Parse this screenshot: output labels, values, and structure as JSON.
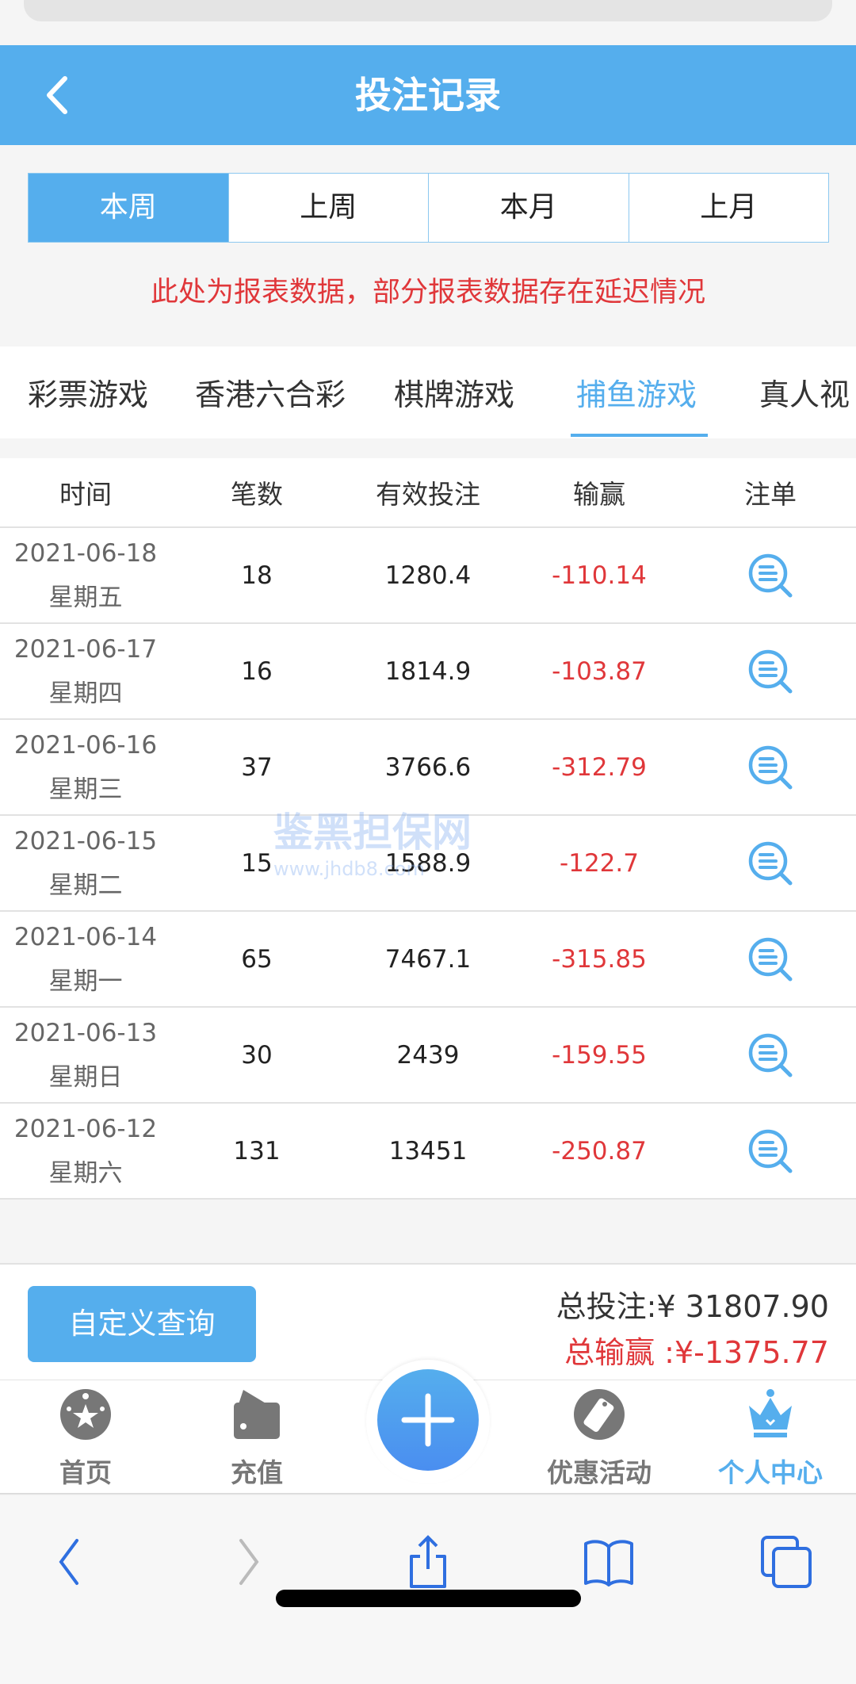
{
  "header": {
    "title": "投注记录",
    "back_icon": "chevron-left-icon"
  },
  "periods": [
    "本周",
    "上周",
    "本月",
    "上月"
  ],
  "active_period": 0,
  "notice": "此处为报表数据，部分报表数据存在延迟情况",
  "game_tabs": [
    "彩票游戏",
    "香港六合彩",
    "棋牌游戏",
    "捕鱼游戏",
    "真人视"
  ],
  "active_game_tab": 3,
  "table": {
    "columns": [
      "时间",
      "笔数",
      "有效投注",
      "输赢",
      "注单"
    ],
    "rows": [
      {
        "date": "2021-06-18",
        "weekday": "星期五",
        "count": "18",
        "valid_bet": "1280.4",
        "win_loss": "-110.14"
      },
      {
        "date": "2021-06-17",
        "weekday": "星期四",
        "count": "16",
        "valid_bet": "1814.9",
        "win_loss": "-103.87"
      },
      {
        "date": "2021-06-16",
        "weekday": "星期三",
        "count": "37",
        "valid_bet": "3766.6",
        "win_loss": "-312.79"
      },
      {
        "date": "2021-06-15",
        "weekday": "星期二",
        "count": "15",
        "valid_bet": "1588.9",
        "win_loss": "-122.7"
      },
      {
        "date": "2021-06-14",
        "weekday": "星期一",
        "count": "65",
        "valid_bet": "7467.1",
        "win_loss": "-315.85"
      },
      {
        "date": "2021-06-13",
        "weekday": "星期日",
        "count": "30",
        "valid_bet": "2439",
        "win_loss": "-159.55"
      },
      {
        "date": "2021-06-12",
        "weekday": "星期六",
        "count": "131",
        "valid_bet": "13451",
        "win_loss": "-250.87"
      }
    ]
  },
  "summary": {
    "custom_query": "自定义查询",
    "total_bet": "总投注:¥ 31807.90",
    "total_win": "总输赢 :¥-1375.77"
  },
  "nav": [
    {
      "label": "首页",
      "icon": "star-ball-icon"
    },
    {
      "label": "充值",
      "icon": "wallet-icon"
    },
    {
      "label": "",
      "icon": "plus-icon"
    },
    {
      "label": "优惠活动",
      "icon": "coupon-icon"
    },
    {
      "label": "个人中心",
      "icon": "crown-icon"
    }
  ],
  "watermark": {
    "name": "鉴黑担保网",
    "url": "www.jhdb8.com"
  },
  "colors": {
    "accent": "#55aeed",
    "loss": "#e0373a",
    "safari_blue": "#2f6fe0"
  }
}
